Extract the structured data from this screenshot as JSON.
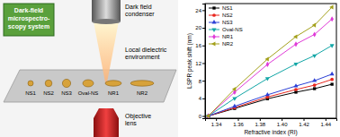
{
  "chart_data": {
    "type": "line",
    "xlabel": "Refractive index (RI)",
    "ylabel": "LSPR peak shift (nm)",
    "x": [
      1.333,
      1.357,
      1.387,
      1.413,
      1.43,
      1.446
    ],
    "series": [
      {
        "name": "NS1",
        "color": "#000000",
        "marker": "square",
        "values": [
          0,
          1.7,
          3.9,
          5.4,
          6.2,
          7.2
        ]
      },
      {
        "name": "NS2",
        "color": "#e8271f",
        "marker": "circle",
        "values": [
          0,
          1.9,
          4.3,
          6.0,
          7.0,
          8.3
        ]
      },
      {
        "name": "NS3",
        "color": "#2b3fd6",
        "marker": "triangle-up",
        "values": [
          0,
          2.2,
          4.8,
          6.8,
          8.0,
          9.5
        ]
      },
      {
        "name": "Oval-NS",
        "color": "#12a6a6",
        "marker": "triangle-down",
        "values": [
          0,
          4.0,
          8.5,
          11.8,
          13.7,
          16.0
        ]
      },
      {
        "name": "NR1",
        "color": "#e03ad8",
        "marker": "diamond",
        "values": [
          0,
          5.4,
          11.7,
          16.3,
          18.5,
          22.0
        ]
      },
      {
        "name": "NR2",
        "color": "#a3a01a",
        "marker": "triangle-left",
        "values": [
          0,
          6.1,
          12.9,
          18.0,
          20.6,
          24.7
        ]
      }
    ],
    "xlim": [
      1.33,
      1.45
    ],
    "xticks": [
      1.34,
      1.36,
      1.38,
      {
        "value": 1.4,
        "label": "1.40"
      },
      1.42,
      1.44
    ],
    "ylim": [
      -0.5,
      25.5
    ],
    "yticks": [
      0,
      4,
      8,
      12,
      16,
      20,
      24
    ],
    "legend": "upper-left",
    "grid": false
  },
  "diagram": {
    "system_label": [
      "Dark-field",
      "microspectro-",
      "scopy system"
    ],
    "condenser_label": [
      "Dark field",
      "condenser"
    ],
    "environment_label": [
      "Local dielectric",
      "environment"
    ],
    "objective_label": [
      "Objective",
      "lens"
    ],
    "particles": [
      "NS1",
      "NS2",
      "NS3",
      "Oval-NS",
      "NR1",
      "NR2"
    ]
  }
}
